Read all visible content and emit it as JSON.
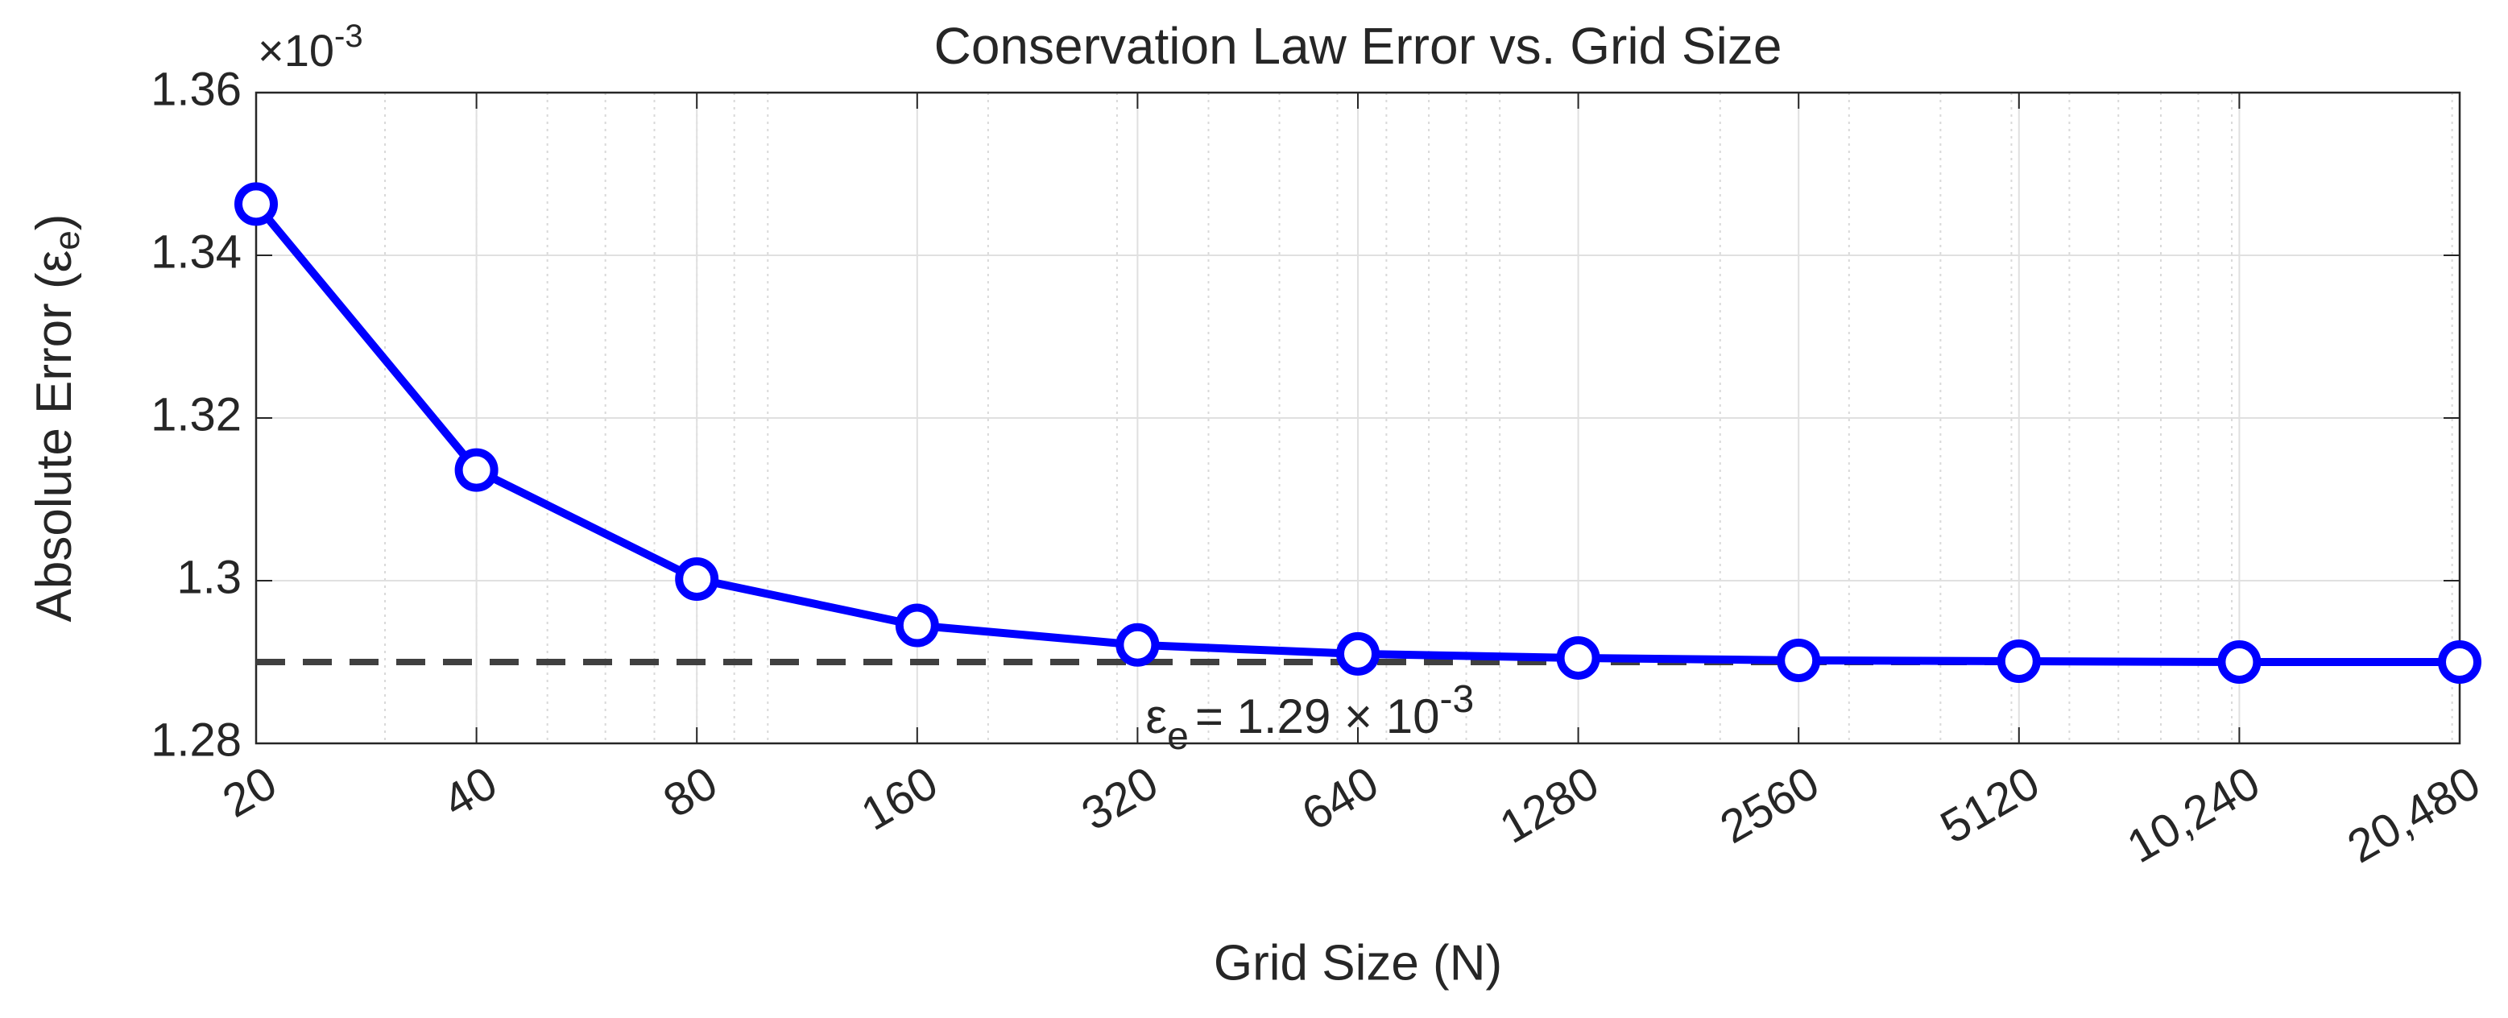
{
  "chart_data": {
    "type": "line",
    "title": "Conservation Law Error vs. Grid Size",
    "x_label": "Grid Size (N)",
    "y_label": {
      "text": "Absolute Error (",
      "symbol": "ε",
      "subscript": "e",
      "close": ")"
    },
    "y_exponent": {
      "text": "×10",
      "superscript": "-3"
    },
    "x": [
      20,
      40,
      80,
      160,
      320,
      640,
      1280,
      2560,
      5120,
      10240,
      20480
    ],
    "series": [
      {
        "name": "Absolute Error",
        "color": "#0000ff",
        "values": [
          1.3463,
          1.3136,
          1.3002,
          1.2945,
          1.2921,
          1.291,
          1.2905,
          1.2902,
          1.2901,
          1.29,
          1.29
        ]
      }
    ],
    "reference_line": {
      "value": 1.29,
      "color": "#404040"
    },
    "annotation": {
      "symbol": "ε",
      "subscript": "e",
      "text": "= 1.29 × 10",
      "superscript": "-3"
    },
    "xscale": "log",
    "xlim": [
      20,
      20480
    ],
    "ylim": [
      1.28,
      1.36
    ],
    "xticks": [
      20,
      40,
      80,
      160,
      320,
      640,
      1280,
      2560,
      5120,
      {
        "value": 10240,
        "label": "10,240"
      },
      {
        "value": 20480,
        "label": "20,480"
      }
    ],
    "yticks": [
      1.28,
      1.3,
      1.32,
      1.34,
      1.36
    ],
    "grid": true,
    "minor_grid": true
  }
}
